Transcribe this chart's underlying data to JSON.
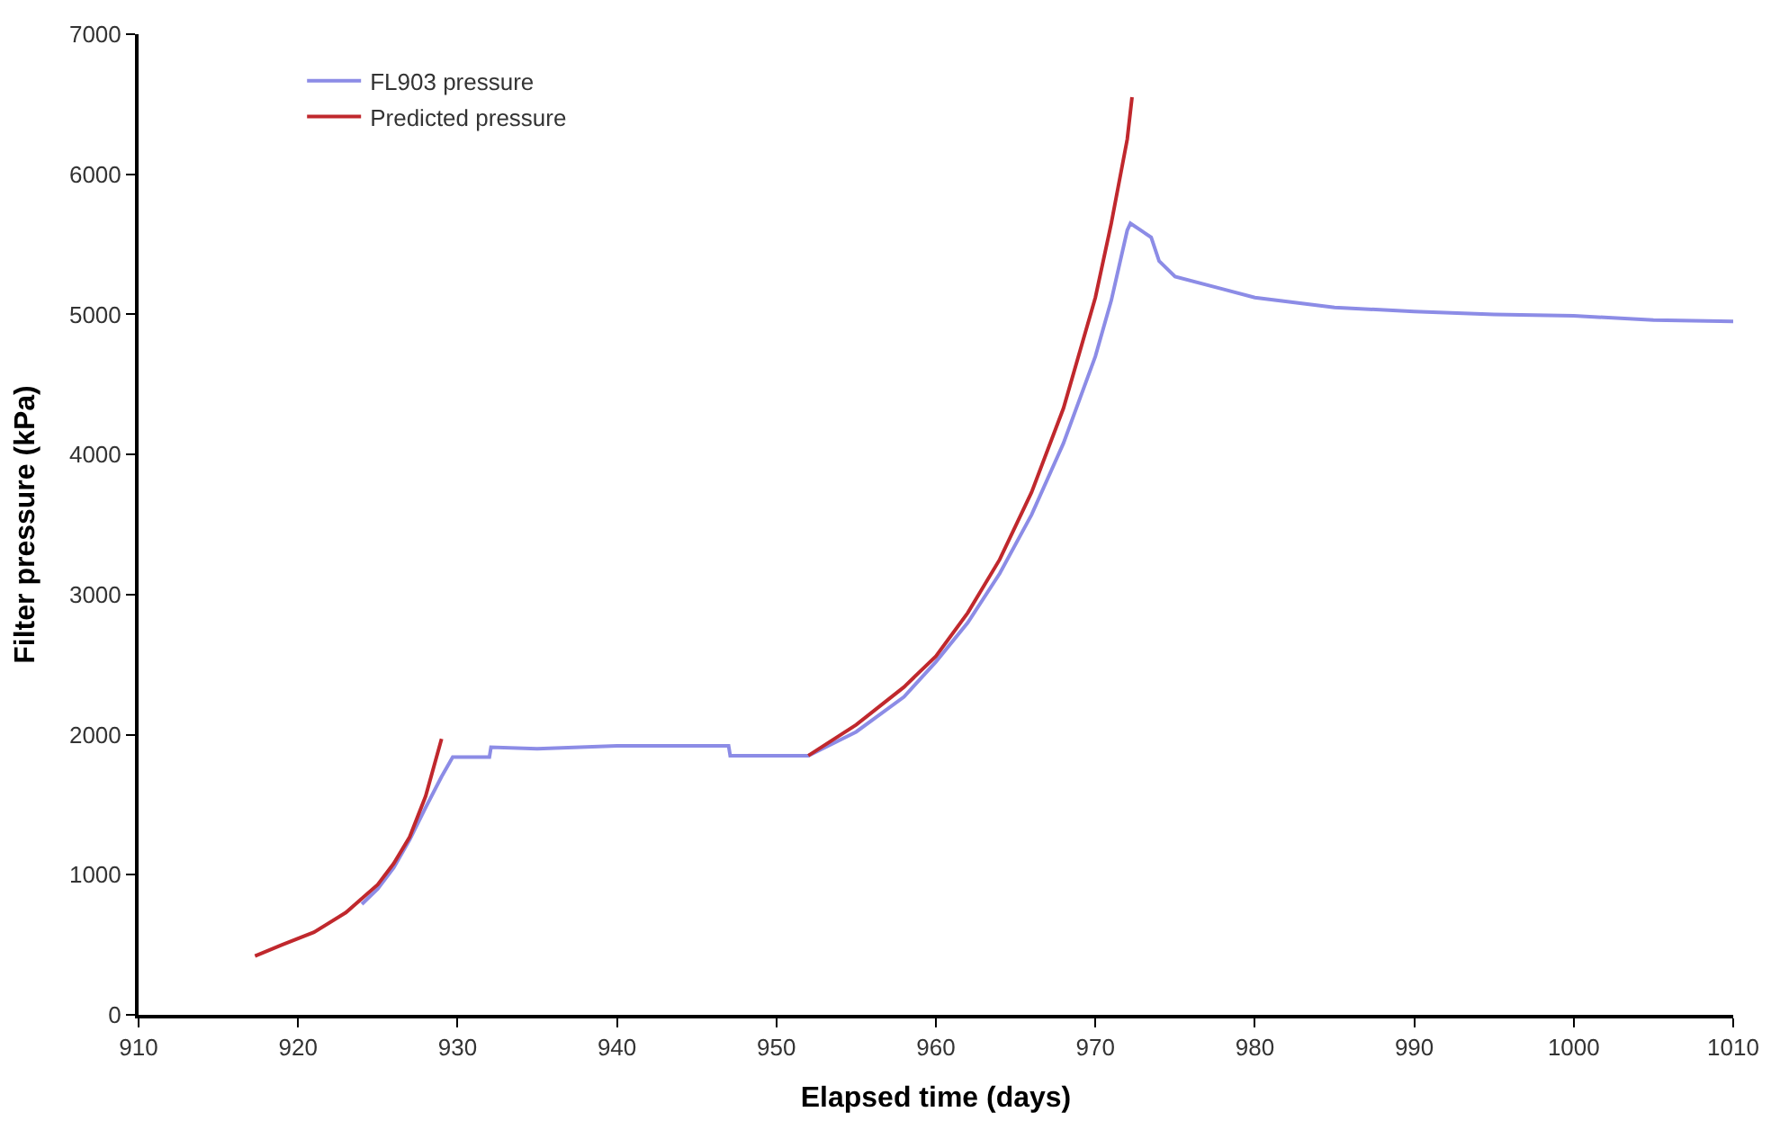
{
  "chart_data": {
    "type": "line",
    "xlabel": "Elapsed time (days)",
    "ylabel": "Filter pressure (kPa)",
    "xlim": [
      910,
      1010
    ],
    "xticks": [
      910,
      920,
      930,
      940,
      950,
      960,
      970,
      980,
      990,
      1000,
      1010
    ],
    "ylim": [
      0,
      7000
    ],
    "yticks": [
      0,
      1000,
      2000,
      3000,
      4000,
      5000,
      6000,
      7000
    ],
    "legend": "top left",
    "marker": "none",
    "line_style": "solid",
    "series": [
      {
        "name": "FL903 pressure",
        "color": "#8c8ce6",
        "x": [
          924,
          925,
          926,
          927,
          928,
          929,
          929.7,
          932,
          932.1,
          935,
          940,
          945,
          947,
          947.1,
          952,
          955,
          958,
          960,
          962,
          964,
          966,
          968,
          970,
          971,
          972,
          972.2,
          973.5,
          974,
          975,
          978,
          980,
          985,
          990,
          995,
          1000,
          1005,
          1010
        ],
        "values": [
          790,
          900,
          1050,
          1250,
          1480,
          1700,
          1840,
          1840,
          1910,
          1900,
          1920,
          1920,
          1920,
          1850,
          1850,
          2020,
          2270,
          2520,
          2800,
          3150,
          3570,
          4080,
          4700,
          5100,
          5600,
          5650,
          5550,
          5380,
          5270,
          5180,
          5120,
          5050,
          5020,
          5000,
          4990,
          4960,
          4950
        ]
      },
      {
        "name": "Predicted pressure",
        "color": "#c0282d",
        "x": [
          917.3,
          919,
          921,
          923,
          925,
          926,
          927,
          928,
          929,
          null,
          952,
          955,
          958,
          960,
          962,
          964,
          966,
          968,
          970,
          971,
          972,
          972.3
        ],
        "values": [
          420,
          500,
          590,
          730,
          930,
          1080,
          1270,
          1560,
          1970,
          null,
          1850,
          2070,
          2340,
          2560,
          2870,
          3250,
          3730,
          4330,
          5120,
          5650,
          6250,
          6550
        ]
      }
    ]
  }
}
